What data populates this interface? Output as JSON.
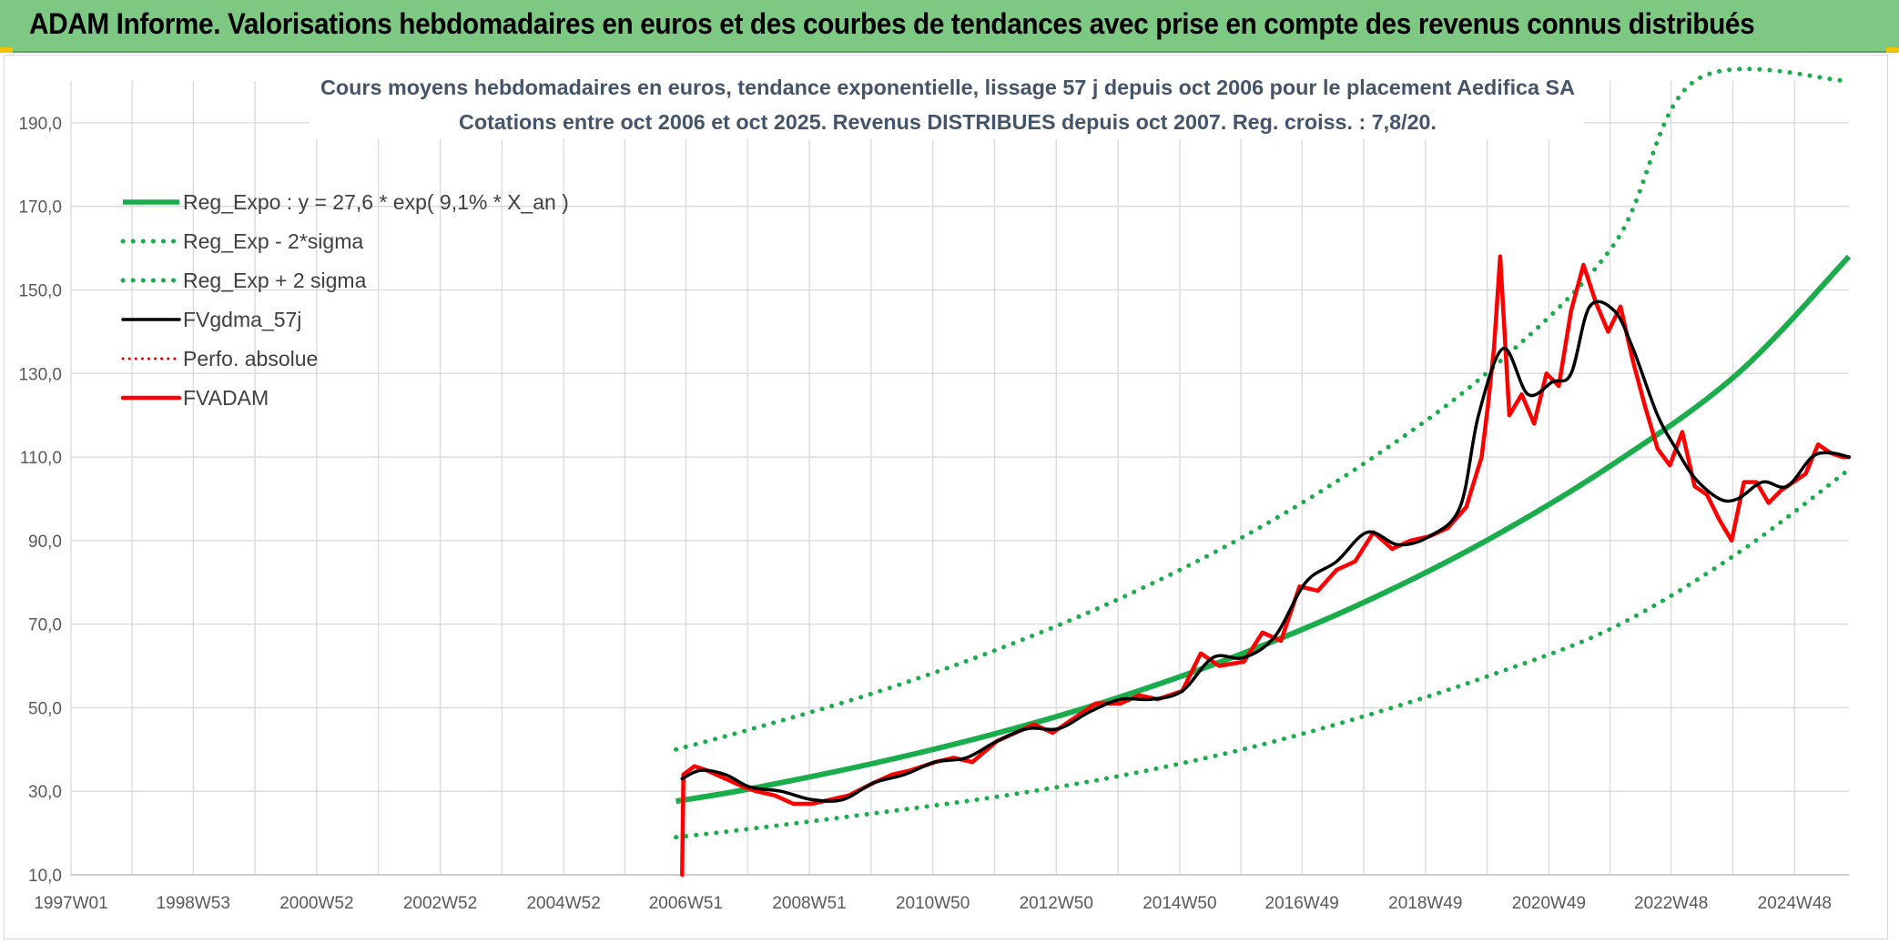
{
  "header": {
    "title": "ADAM Informe. Valorisations hebdomadaires en euros et des courbes de tendances avec prise en compte des revenus connus distribués"
  },
  "chart_data": {
    "type": "line",
    "title": "Cours moyens hebdomadaires en euros, tendance exponentielle, lissage 57 j depuis oct 2006 pour le placement Aedifica SA",
    "subtitle": "Cotations entre oct 2006 et oct 2025. Revenus DISTRIBUES depuis oct 2007. Reg. croiss. : 7,8/20.",
    "xlabel": "",
    "ylabel": "",
    "ylim": [
      10,
      200
    ],
    "xlim": [
      1997.0,
      2025.8
    ],
    "y_ticks": [
      "190,0",
      "170,0",
      "150,0",
      "130,0",
      "110,0",
      "90,0",
      "70,0",
      "50,0",
      "30,0",
      "10,0"
    ],
    "y_tick_values": [
      190,
      170,
      150,
      130,
      110,
      90,
      70,
      50,
      30,
      10
    ],
    "x_tick_labels": [
      "1997W01",
      "1998W53",
      "2000W52",
      "2002W52",
      "2004W52",
      "2006W51",
      "2008W51",
      "2010W50",
      "2012W50",
      "2014W50",
      "2016W49",
      "2018W49",
      "2020W49",
      "2022W48",
      "2024W48"
    ],
    "x_tick_values": [
      1997.0,
      1998.98,
      2000.98,
      2002.98,
      2004.98,
      2006.96,
      2008.96,
      2010.96,
      2012.96,
      2014.96,
      2016.94,
      2018.94,
      2020.94,
      2022.92,
      2024.92
    ],
    "grid": true,
    "legend_position": "top-left",
    "colors": {
      "trend": "#1aad4b",
      "band": "#1aad4b",
      "smoothed": "#000000",
      "perf": "#e00000",
      "price": "#ff0000"
    },
    "series": [
      {
        "name": "Reg_Expo : y = 27,6 * exp( 9,1% *  X_an )",
        "style": "solid-green-thick",
        "x": [
          2006.8,
          2008,
          2010,
          2012,
          2014,
          2016,
          2018,
          2020,
          2022,
          2024,
          2025.8
        ],
        "values": [
          27.6,
          30.6,
          36.7,
          43.9,
          52.6,
          63.1,
          75.6,
          90.6,
          108.5,
          130.0,
          158.0
        ]
      },
      {
        "name": "Reg_Exp - 2*sigma",
        "style": "dotted-green",
        "x": [
          2006.8,
          2008,
          2010,
          2012,
          2014,
          2016,
          2018,
          2020,
          2022,
          2024,
          2025.8
        ],
        "values": [
          19.0,
          21.0,
          24.7,
          28.7,
          33.7,
          40.1,
          48.2,
          57.8,
          69.3,
          87.0,
          107.0
        ]
      },
      {
        "name": "Reg_Exp + 2 sigma",
        "style": "dotted-green",
        "x": [
          2006.8,
          2008,
          2010,
          2012,
          2014,
          2016,
          2018,
          2020,
          2022,
          2023.3,
          2025.8
        ],
        "values": [
          40.0,
          44.8,
          53.5,
          63.9,
          76.2,
          91.0,
          109.0,
          131.0,
          161.0,
          200.0,
          200.0
        ]
      },
      {
        "name": "FVgdma_57j",
        "style": "solid-black",
        "x": [
          2006.9,
          2007.2,
          2007.6,
          2008.0,
          2008.5,
          2009.0,
          2009.5,
          2010.0,
          2010.5,
          2011.0,
          2011.5,
          2012.0,
          2012.5,
          2013.0,
          2013.5,
          2014.0,
          2014.5,
          2015.0,
          2015.5,
          2016.0,
          2016.5,
          2017.0,
          2017.5,
          2018.0,
          2018.5,
          2019.0,
          2019.5,
          2019.8,
          2020.2,
          2020.6,
          2021.0,
          2021.3,
          2021.6,
          2022.0,
          2022.3,
          2022.7,
          2023.0,
          2023.3,
          2023.7,
          2024.0,
          2024.4,
          2024.8,
          2025.2,
          2025.5,
          2025.8
        ],
        "values": [
          33,
          35,
          34,
          31,
          30,
          28,
          28,
          32,
          34,
          37,
          38,
          42,
          45,
          45,
          49,
          52,
          52,
          54,
          62,
          62,
          67,
          80,
          85,
          92,
          89,
          91,
          98,
          120,
          136,
          125,
          128,
          130,
          146,
          145,
          136,
          120,
          112,
          105,
          100,
          100,
          104,
          103,
          110,
          111,
          110
        ]
      },
      {
        "name": "Perfo. absolue",
        "style": "dotted-red",
        "x": [],
        "values": []
      },
      {
        "name": "FVADAM",
        "style": "solid-red-thick",
        "x": [
          2006.9,
          2006.92,
          2007.1,
          2007.3,
          2007.6,
          2007.9,
          2008.1,
          2008.4,
          2008.7,
          2009.0,
          2009.3,
          2009.6,
          2010.0,
          2010.3,
          2010.6,
          2011.0,
          2011.3,
          2011.6,
          2012.0,
          2012.3,
          2012.6,
          2012.9,
          2013.3,
          2013.6,
          2014.0,
          2014.3,
          2014.6,
          2015.0,
          2015.3,
          2015.6,
          2016.0,
          2016.3,
          2016.6,
          2016.9,
          2017.2,
          2017.5,
          2017.8,
          2018.1,
          2018.4,
          2018.7,
          2019.0,
          2019.3,
          2019.6,
          2019.85,
          2019.95,
          2020.05,
          2020.15,
          2020.3,
          2020.5,
          2020.7,
          2020.9,
          2021.1,
          2021.3,
          2021.5,
          2021.7,
          2021.9,
          2022.1,
          2022.3,
          2022.5,
          2022.7,
          2022.9,
          2023.1,
          2023.3,
          2023.5,
          2023.7,
          2023.9,
          2024.1,
          2024.3,
          2024.5,
          2024.7,
          2024.9,
          2025.1,
          2025.3,
          2025.5,
          2025.7,
          2025.8
        ],
        "values": [
          10,
          34,
          36,
          35,
          33,
          31,
          30,
          29,
          27,
          27,
          28,
          29,
          32,
          34,
          35,
          37,
          38,
          37,
          42,
          44,
          46,
          44,
          48,
          51,
          51,
          53,
          52,
          54,
          63,
          60,
          61,
          68,
          66,
          79,
          78,
          83,
          85,
          92,
          88,
          90,
          91,
          93,
          98,
          110,
          122,
          136,
          158,
          120,
          125,
          118,
          130,
          127,
          145,
          156,
          147,
          140,
          146,
          133,
          122,
          112,
          108,
          116,
          103,
          101,
          95,
          90,
          104,
          104,
          99,
          102,
          104,
          106,
          113,
          111,
          110,
          110
        ]
      }
    ]
  }
}
